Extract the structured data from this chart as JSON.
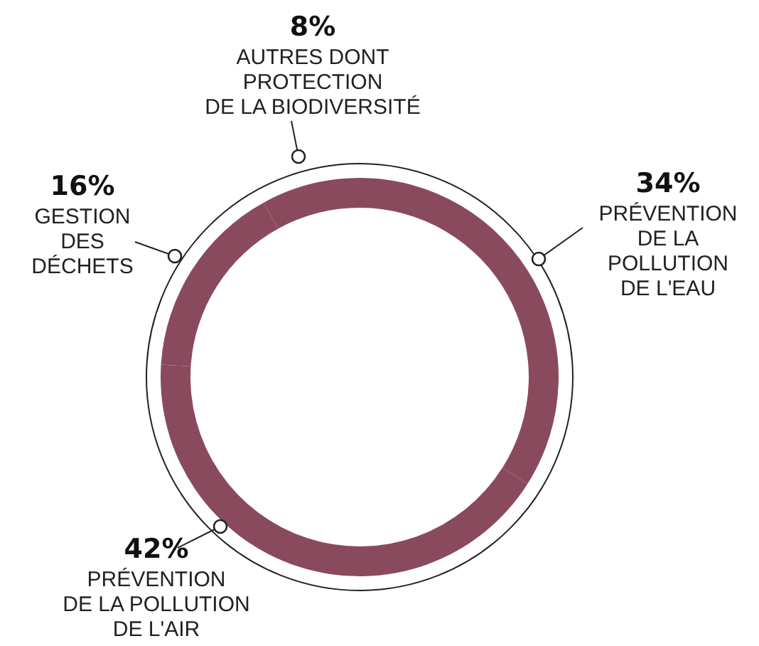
{
  "chart_data": {
    "type": "donut",
    "categories": [
      "PRÉVENTION DE LA POLLUTION DE L'EAU",
      "PRÉVENTION DE LA POLLUTION DE L'AIR",
      "GESTION DES DÉCHETS",
      "AUTRES DONT PROTECTION DE LA BIODIVERSITÉ"
    ],
    "values": [
      34,
      42,
      16,
      8
    ],
    "colors": [
      "#8a4a5e",
      "#8a4a5e",
      "#8a4a5e",
      "#8a4a5e"
    ],
    "value_labels": [
      "34%",
      "42%",
      "16%",
      "8%"
    ]
  }
}
